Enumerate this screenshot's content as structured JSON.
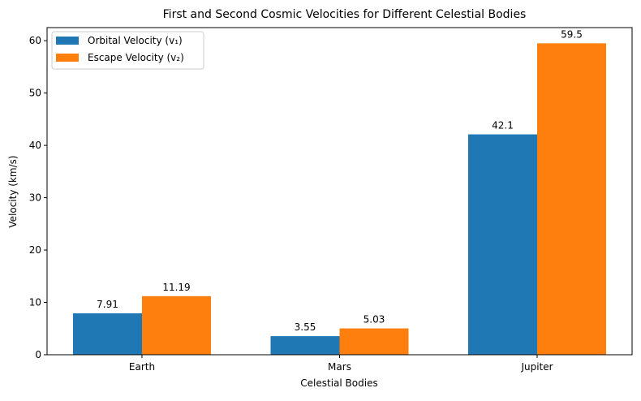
{
  "chart_data": {
    "type": "bar",
    "title": "First and Second Cosmic Velocities for Different Celestial Bodies",
    "xlabel": "Celestial Bodies",
    "ylabel": "Velocity (km/s)",
    "categories": [
      "Earth",
      "Mars",
      "Jupiter"
    ],
    "series": [
      {
        "name": "Orbital Velocity (v₁)",
        "color": "#1f77b4",
        "values": [
          7.91,
          3.55,
          42.1
        ],
        "labels": [
          "7.91",
          "3.55",
          "42.1"
        ]
      },
      {
        "name": "Escape Velocity (v₂)",
        "color": "#ff7f0e",
        "values": [
          11.19,
          5.03,
          59.5
        ],
        "labels": [
          "11.19",
          "5.03",
          "59.5"
        ]
      }
    ],
    "ylim": [
      0,
      62.5
    ],
    "yticks": [
      0,
      10,
      20,
      30,
      40,
      50,
      60
    ],
    "grid": false,
    "legend_position": "top-left"
  }
}
